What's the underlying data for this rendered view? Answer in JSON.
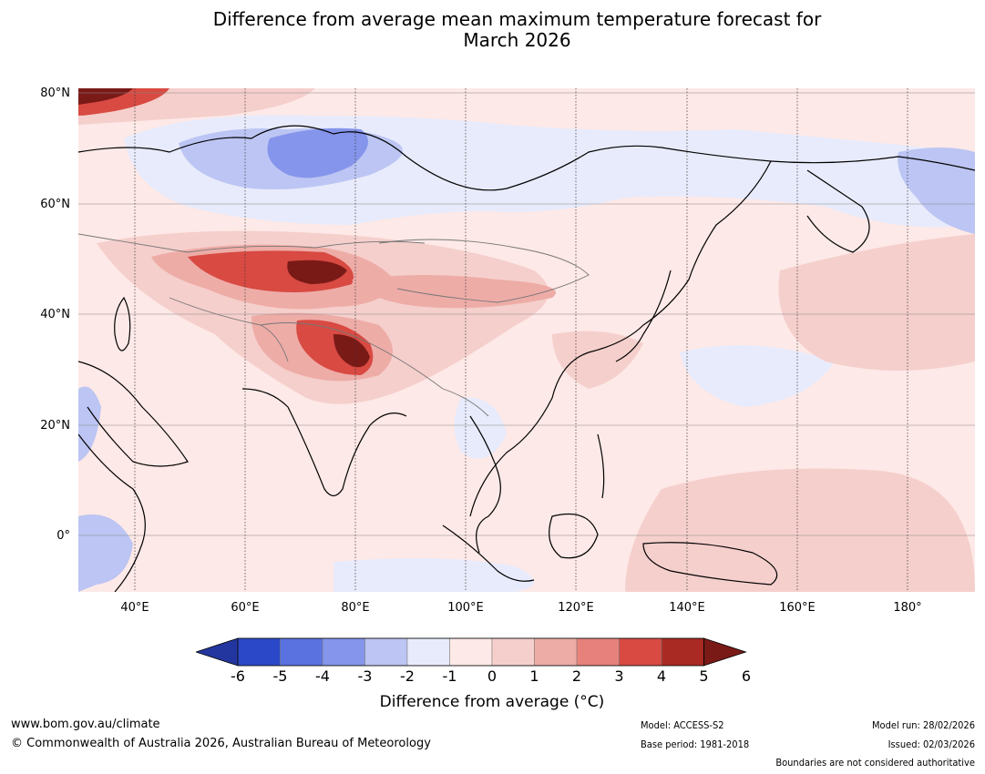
{
  "title_line1": "Difference from average mean maximum temperature forecast for",
  "title_line2": "March 2026",
  "lat_labels": [
    "80°N",
    "60°N",
    "40°N",
    "20°N",
    "0°"
  ],
  "lon_labels": [
    "40°E",
    "60°E",
    "80°E",
    "100°E",
    "120°E",
    "140°E",
    "160°E",
    "180°"
  ],
  "colorbar": {
    "ticks": [
      "-6",
      "-5",
      "-4",
      "-3",
      "-2",
      "-1",
      "0",
      "1",
      "2",
      "3",
      "4",
      "5",
      "6"
    ],
    "colors": [
      "#23369f",
      "#2b48c9",
      "#5a72e0",
      "#8595eb",
      "#bcc5f3",
      "#e8ebfb",
      "#fde9e7",
      "#f5cfcc",
      "#eeaca7",
      "#e6827b",
      "#d84a42",
      "#a92a22",
      "#7a1a17"
    ],
    "label": "Difference from average (°C)"
  },
  "footer": {
    "website": "www.bom.gov.au/climate",
    "copyright": "© Commonwealth of Australia 2026, Australian Bureau of Meteorology",
    "model": "Model: ACCESS-S2",
    "base_period": "Base period: 1981-2018",
    "model_run": "Model run: 28/02/2026",
    "issued": "Issued: 02/03/2026",
    "disclaimer": "Boundaries are not considered authoritative"
  }
}
